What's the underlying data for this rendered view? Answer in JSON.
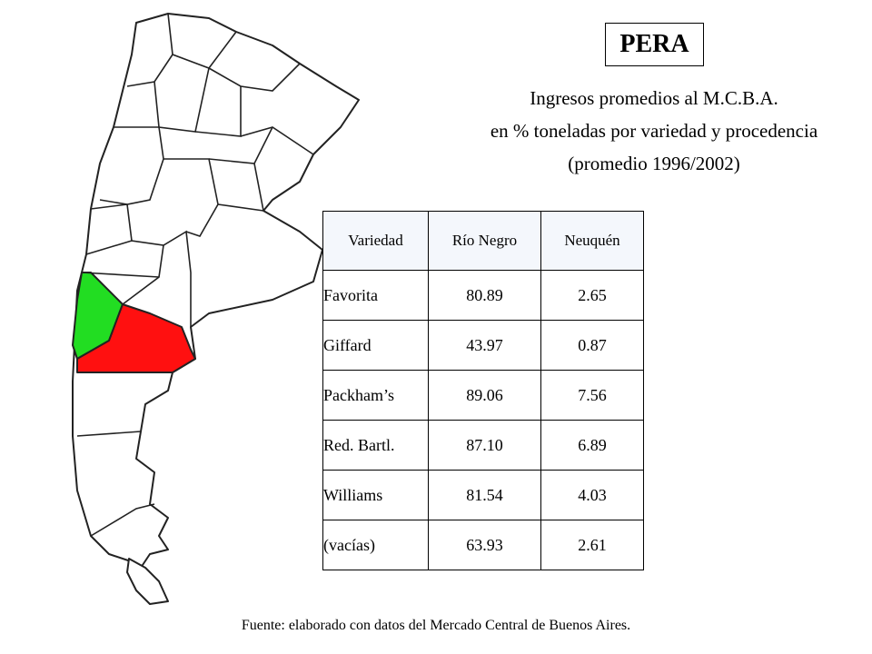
{
  "header": {
    "title": "PERA",
    "subtitle": [
      "Ingresos promedios al M.C.B.A.",
      "en % toneladas por variedad y procedencia",
      "(promedio 1996/2002)"
    ]
  },
  "table": {
    "columns": [
      "Variedad",
      "Río Negro",
      "Neuquén"
    ],
    "rows": [
      [
        "Favorita",
        "80.89",
        "2.65"
      ],
      [
        "Giffard",
        "43.97",
        "0.87"
      ],
      [
        "Packham’s",
        "89.06",
        "7.56"
      ],
      [
        "Red. Bartl.",
        "87.10",
        "6.89"
      ],
      [
        "Williams",
        "81.54",
        "4.03"
      ],
      [
        "(vacías)",
        "63.93",
        "2.61"
      ]
    ]
  },
  "footnote": "Fuente: elaborado con datos del Mercado Central de Buenos Aires."
}
